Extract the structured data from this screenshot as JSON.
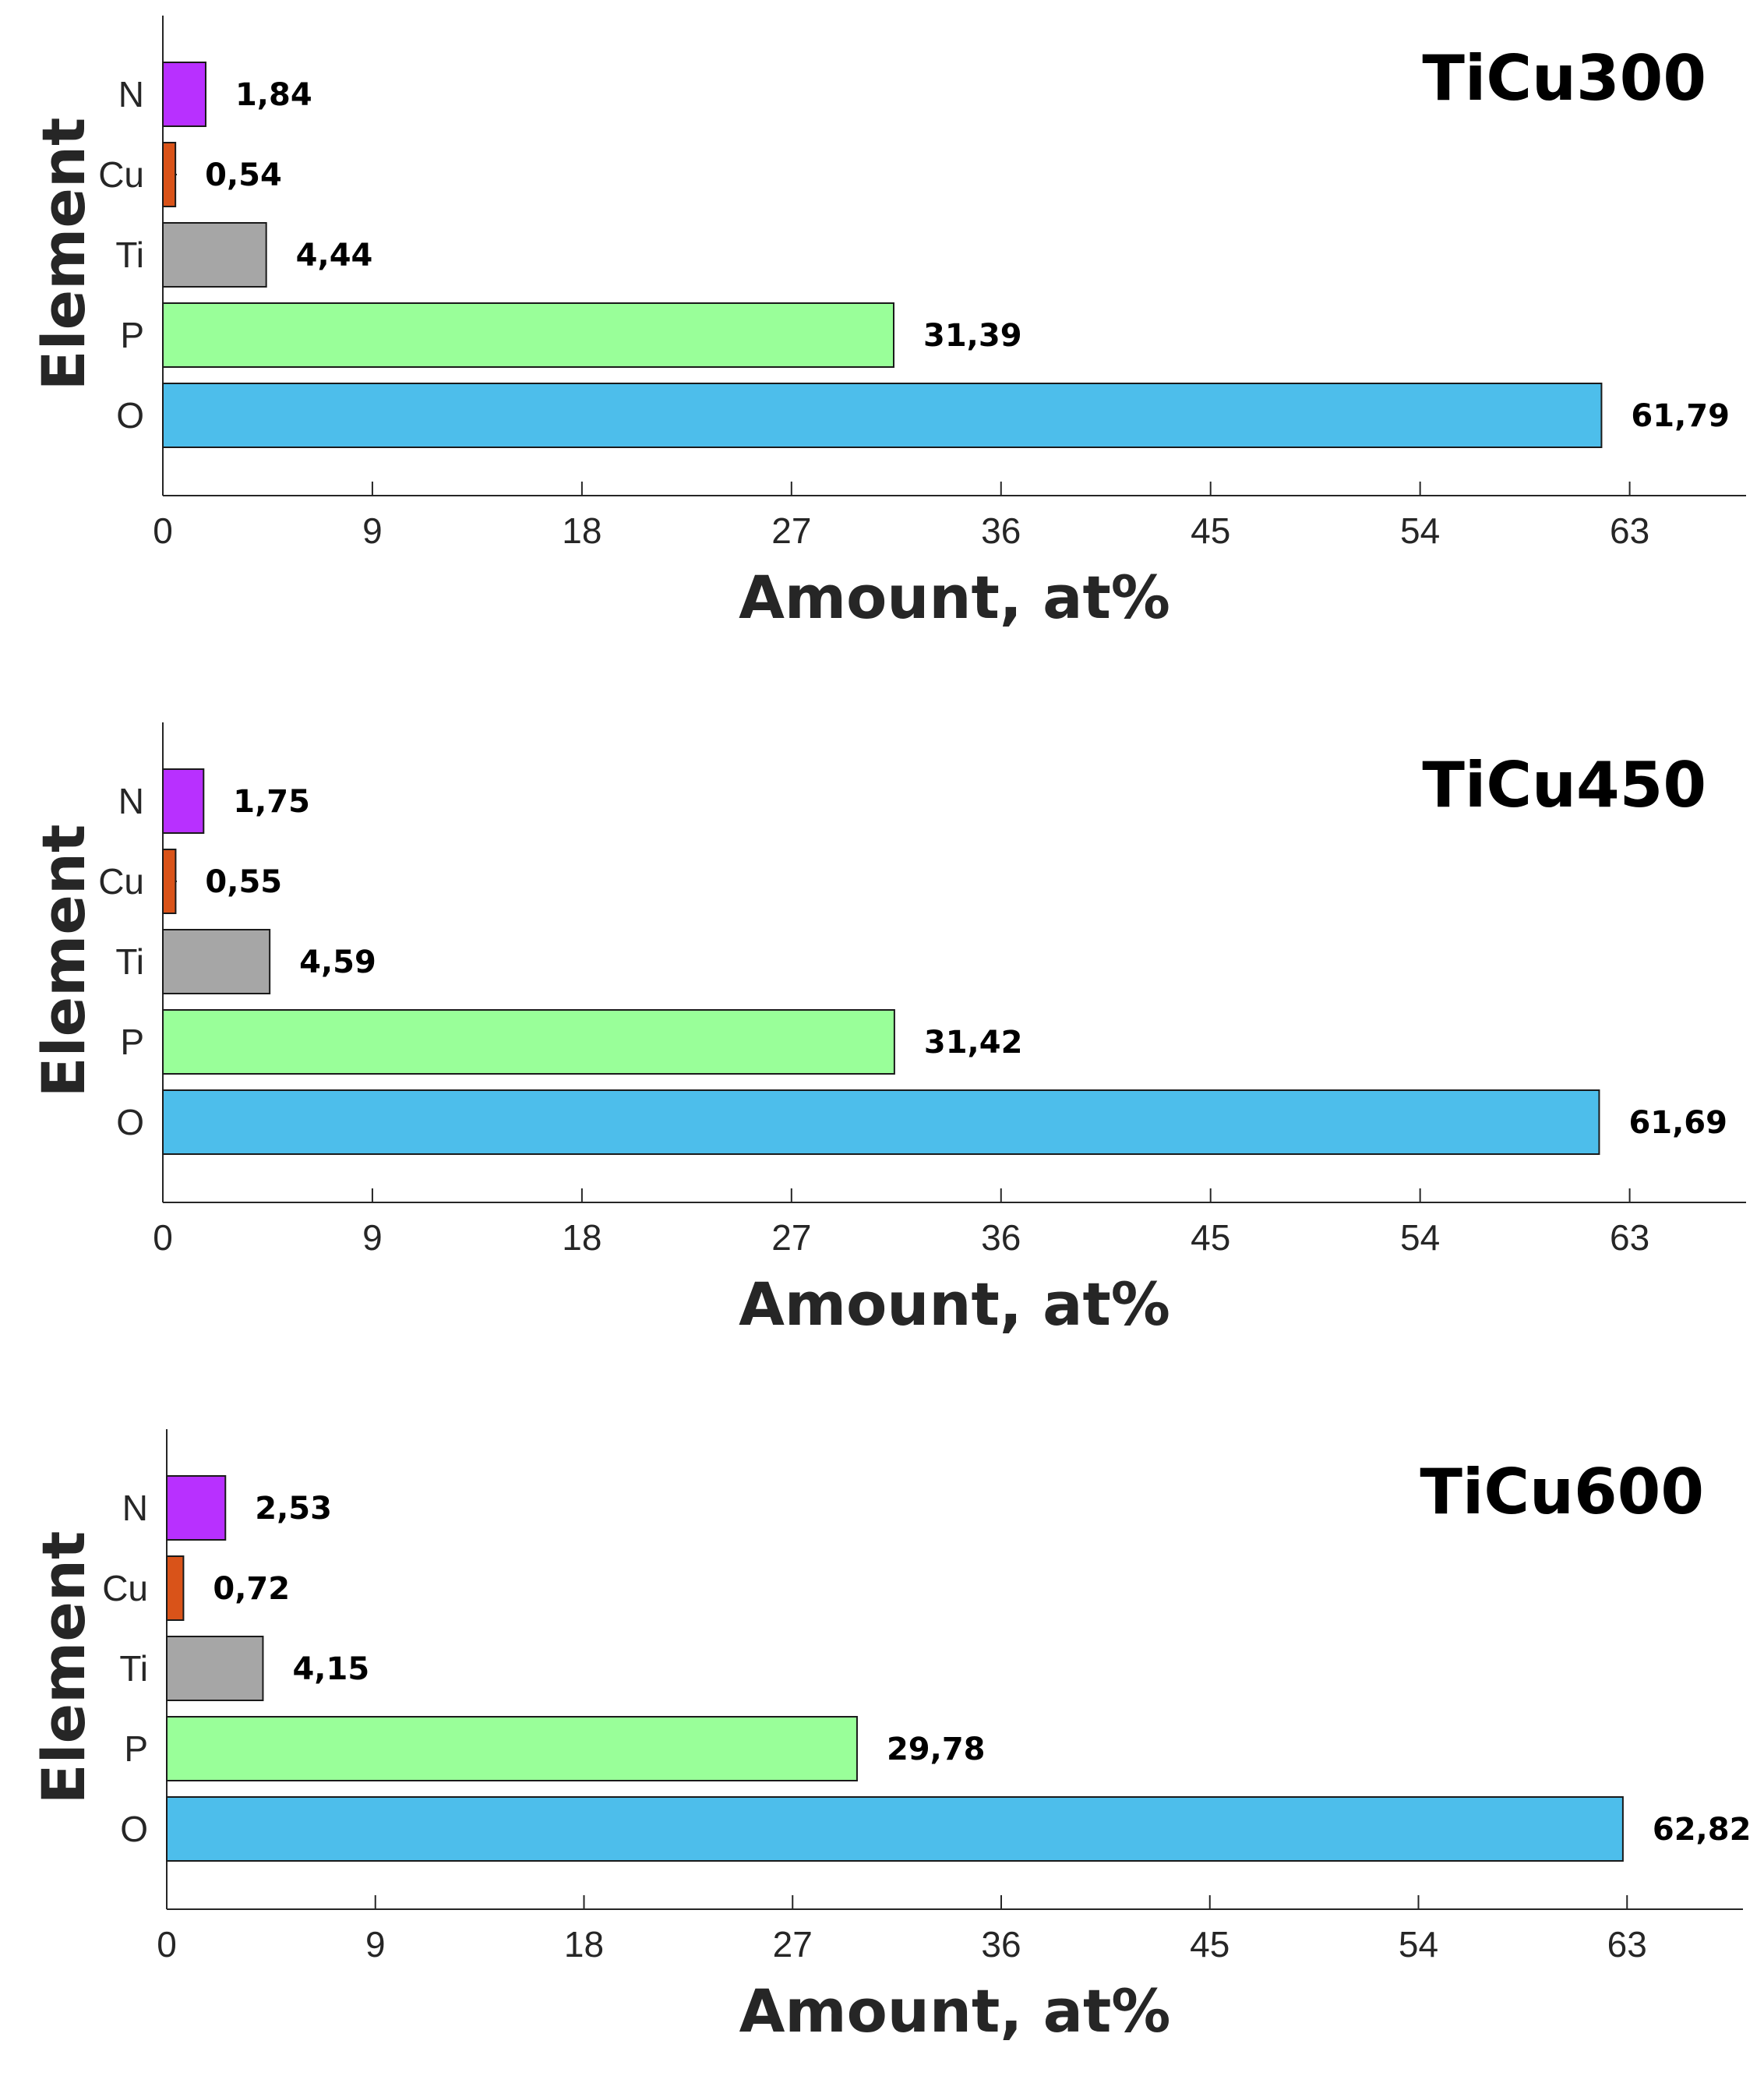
{
  "chart_data": [
    {
      "type": "bar",
      "orientation": "horizontal",
      "title": "TiCu300",
      "categories": [
        "O",
        "P",
        "Ti",
        "Cu",
        "N"
      ],
      "values": [
        61.79,
        31.39,
        4.44,
        0.54,
        1.84
      ],
      "value_labels": [
        "61,79",
        "31,39",
        "4,44",
        "0,54",
        "1,84"
      ],
      "xlabel": "Amount, at%",
      "ylabel": "Element",
      "xlim": [
        0,
        68
      ],
      "xticks": [
        0,
        9,
        18,
        27,
        36,
        45,
        54,
        63
      ],
      "grid": false,
      "colors": [
        "#4dbeeb",
        "#99ff99",
        "#a6a6a6",
        "#d95319",
        "#b830ff"
      ]
    },
    {
      "type": "bar",
      "orientation": "horizontal",
      "title": "TiCu450",
      "categories": [
        "O",
        "P",
        "Ti",
        "Cu",
        "N"
      ],
      "values": [
        61.69,
        31.42,
        4.59,
        0.55,
        1.75
      ],
      "value_labels": [
        "61,69",
        "31,42",
        "4,59",
        "0,55",
        "1,75"
      ],
      "xlabel": "Amount, at%",
      "ylabel": "Element",
      "xlim": [
        0,
        68
      ],
      "xticks": [
        0,
        9,
        18,
        27,
        36,
        45,
        54,
        63
      ],
      "grid": false,
      "colors": [
        "#4dbeeb",
        "#99ff99",
        "#a6a6a6",
        "#d95319",
        "#b830ff"
      ]
    },
    {
      "type": "bar",
      "orientation": "horizontal",
      "title": "TiCu600",
      "categories": [
        "O",
        "P",
        "Ti",
        "Cu",
        "N"
      ],
      "values": [
        62.82,
        29.78,
        4.15,
        0.72,
        2.53
      ],
      "value_labels": [
        "62,82",
        "29,78",
        "4,15",
        "0,72",
        "2,53"
      ],
      "xlabel": "Amount, at%",
      "ylabel": "Element",
      "xlim": [
        0,
        68
      ],
      "xticks": [
        0,
        9,
        18,
        27,
        36,
        45,
        54,
        63
      ],
      "grid": false,
      "colors": [
        "#4dbeeb",
        "#99ff99",
        "#a6a6a6",
        "#d95319",
        "#b830ff"
      ]
    }
  ]
}
